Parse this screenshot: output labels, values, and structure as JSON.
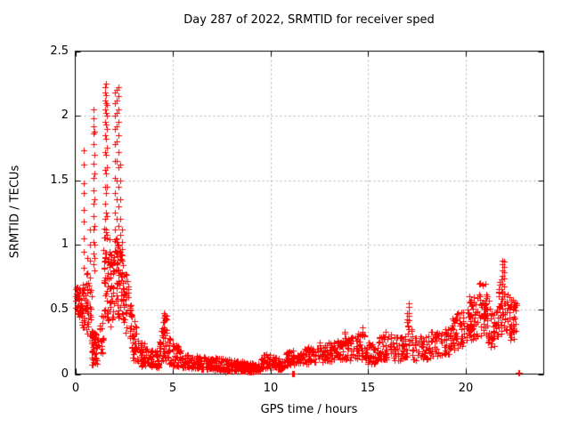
{
  "chart_data": {
    "type": "scatter",
    "title": "Day 287 of 2022, SRMTID for receiver sped",
    "xlabel": "GPS time / hours",
    "ylabel": "SRMTID / TECUs",
    "xlim": [
      0,
      24
    ],
    "ylim": [
      0,
      2.5
    ],
    "xticks": {
      "values": [
        0,
        5,
        10,
        15,
        20
      ],
      "labels": [
        "0",
        "5",
        "10",
        "15",
        "20"
      ]
    },
    "yticks": {
      "values": [
        0,
        0.5,
        1,
        1.5,
        2,
        2.5
      ],
      "labels": [
        "0",
        "0.5",
        "1",
        "1.5",
        "2",
        "2.5"
      ]
    },
    "grid": true,
    "legend": "none",
    "marker": "plus",
    "marker_size_px": 7,
    "colors": {
      "marker": "#ff0000",
      "grid": "#b0b0b0",
      "axis": "#000000",
      "background": "#ffffff",
      "text": "#000000"
    },
    "seed": 287,
    "bands": [
      [
        0.02,
        0.28,
        42,
        0.44,
        0.68,
        0.44,
        0.66,
        1.0
      ],
      [
        0.28,
        0.55,
        30,
        0.38,
        0.72,
        0.34,
        0.68,
        1.2
      ],
      [
        0.55,
        0.85,
        26,
        0.32,
        0.78,
        0.28,
        0.72,
        1.2
      ],
      [
        0.82,
        1.15,
        48,
        0.07,
        0.34,
        0.08,
        0.3,
        1.2
      ],
      [
        1.15,
        1.45,
        22,
        0.1,
        0.42,
        0.15,
        0.5,
        1.2
      ],
      [
        1.45,
        1.8,
        50,
        0.35,
        1.15,
        0.45,
        1.12,
        0.9
      ],
      [
        1.8,
        2.02,
        28,
        0.35,
        0.95,
        0.4,
        0.9,
        1.0
      ],
      [
        2.02,
        2.45,
        60,
        0.45,
        1.08,
        0.4,
        0.95,
        1.0
      ],
      [
        2.45,
        2.85,
        42,
        0.32,
        0.88,
        0.25,
        0.6,
        1.2
      ],
      [
        2.85,
        3.25,
        36,
        0.12,
        0.5,
        0.08,
        0.3,
        1.3
      ],
      [
        3.25,
        3.65,
        34,
        0.06,
        0.28,
        0.05,
        0.22,
        1.3
      ],
      [
        3.65,
        4.3,
        52,
        0.04,
        0.2,
        0.05,
        0.2,
        1.3
      ],
      [
        4.3,
        4.48,
        16,
        0.08,
        0.3,
        0.1,
        0.42,
        1.1
      ],
      [
        4.48,
        4.68,
        24,
        0.1,
        0.5,
        0.1,
        0.45,
        1.0
      ],
      [
        4.68,
        4.85,
        14,
        0.08,
        0.38,
        0.08,
        0.3,
        1.2
      ],
      [
        4.85,
        5.45,
        40,
        0.07,
        0.3,
        0.05,
        0.18,
        1.4
      ],
      [
        5.45,
        6.45,
        75,
        0.04,
        0.16,
        0.04,
        0.14,
        1.3
      ],
      [
        6.45,
        7.55,
        85,
        0.03,
        0.14,
        0.03,
        0.12,
        1.3
      ],
      [
        7.55,
        8.7,
        90,
        0.02,
        0.12,
        0.02,
        0.1,
        1.3
      ],
      [
        8.7,
        9.5,
        60,
        0.015,
        0.09,
        0.02,
        0.08,
        1.2
      ],
      [
        9.5,
        10.3,
        55,
        0.04,
        0.16,
        0.05,
        0.15,
        1.2
      ],
      [
        10.3,
        10.7,
        28,
        0.03,
        0.12,
        0.04,
        0.12,
        1.2
      ],
      [
        10.7,
        11.5,
        50,
        0.06,
        0.18,
        0.07,
        0.18,
        1.2
      ],
      [
        11.5,
        12.3,
        55,
        0.07,
        0.2,
        0.08,
        0.22,
        1.2
      ],
      [
        12.3,
        13.3,
        65,
        0.09,
        0.25,
        0.1,
        0.25,
        1.2
      ],
      [
        13.3,
        14.0,
        48,
        0.1,
        0.28,
        0.12,
        0.3,
        1.2
      ],
      [
        14.0,
        14.9,
        52,
        0.1,
        0.3,
        0.12,
        0.33,
        1.2
      ],
      [
        14.9,
        15.55,
        40,
        0.07,
        0.26,
        0.08,
        0.24,
        1.2
      ],
      [
        15.55,
        16.35,
        50,
        0.1,
        0.32,
        0.12,
        0.34,
        1.2
      ],
      [
        16.35,
        17.0,
        40,
        0.1,
        0.3,
        0.12,
        0.3,
        1.2
      ],
      [
        17.0,
        17.25,
        18,
        0.15,
        0.5,
        0.15,
        0.45,
        1.0
      ],
      [
        17.25,
        18.2,
        55,
        0.1,
        0.3,
        0.12,
        0.3,
        1.2
      ],
      [
        18.2,
        19.3,
        65,
        0.13,
        0.34,
        0.15,
        0.36,
        1.1
      ],
      [
        19.3,
        20.0,
        50,
        0.18,
        0.45,
        0.22,
        0.52,
        1.1
      ],
      [
        20.0,
        20.65,
        55,
        0.25,
        0.6,
        0.28,
        0.62,
        1.0
      ],
      [
        20.65,
        21.15,
        52,
        0.28,
        0.72,
        0.3,
        0.7,
        1.0
      ],
      [
        21.15,
        21.7,
        45,
        0.2,
        0.58,
        0.22,
        0.55,
        1.1
      ],
      [
        21.7,
        22.15,
        40,
        0.28,
        0.75,
        0.3,
        0.7,
        1.0
      ],
      [
        22.15,
        22.6,
        45,
        0.25,
        0.62,
        0.28,
        0.55,
        1.1
      ]
    ],
    "columns": [
      {
        "x": 0.42,
        "ys": [
          0.82,
          0.95,
          1.05,
          1.18,
          1.27,
          1.4,
          1.48,
          1.62,
          1.73
        ]
      },
      {
        "x": 0.6,
        "ys": [
          0.55,
          0.66,
          0.78,
          0.9
        ]
      },
      {
        "x": 0.75,
        "ys": [
          0.52,
          0.64,
          0.75,
          0.88,
          1.0,
          1.12
        ]
      },
      {
        "x": 0.92,
        "ys": [
          0.85,
          0.93,
          1.02,
          1.12,
          1.22,
          1.32,
          1.42,
          1.52,
          1.63,
          1.78,
          1.86,
          1.92,
          1.98,
          2.05
        ]
      },
      {
        "x": 0.97,
        "ys": [
          0.8,
          0.9,
          1.0,
          1.15,
          1.35,
          1.55,
          1.7,
          1.88
        ]
      },
      {
        "x": 1.52,
        "ys": [
          1.2,
          1.32,
          1.45,
          1.58,
          1.72,
          1.85,
          1.95,
          2.05,
          2.12,
          2.18,
          2.22
        ]
      },
      {
        "x": 1.57,
        "ys": [
          1.1,
          1.25,
          1.4,
          1.55,
          1.7,
          1.82,
          1.93,
          2.02,
          2.1,
          2.16,
          2.25
        ]
      },
      {
        "x": 1.63,
        "ys": [
          1.05,
          1.22,
          1.45,
          1.6,
          1.75,
          1.9,
          2.0,
          2.08
        ]
      },
      {
        "x": 2.05,
        "ys": [
          1.12,
          1.25,
          1.4,
          1.52,
          1.65,
          1.78,
          1.9,
          2.0,
          2.1,
          2.18
        ]
      },
      {
        "x": 2.12,
        "ys": [
          1.05,
          1.2,
          1.35,
          1.5,
          1.65,
          1.8,
          1.92,
          2.02,
          2.12,
          2.2
        ]
      },
      {
        "x": 2.22,
        "ys": [
          1.0,
          1.15,
          1.3,
          1.45,
          1.6,
          1.72,
          1.85,
          1.95,
          2.05,
          2.15,
          2.22
        ]
      },
      {
        "x": 2.3,
        "ys": [
          0.95,
          1.08,
          1.2,
          1.35,
          1.5,
          1.62
        ]
      },
      {
        "x": 2.38,
        "ys": [
          0.92,
          1.02,
          1.12
        ]
      },
      {
        "x": 4.55,
        "ys": [
          0.32,
          0.36,
          0.4,
          0.44,
          0.47
        ]
      },
      {
        "x": 4.6,
        "ys": [
          0.3,
          0.35,
          0.42,
          0.46
        ]
      },
      {
        "x": 11.1,
        "ys": [
          0.004
        ]
      },
      {
        "x": 11.14,
        "ys": [
          0.004
        ]
      },
      {
        "x": 11.18,
        "ys": [
          0.004
        ]
      },
      {
        "x": 13.78,
        "ys": [
          0.28,
          0.31,
          0.33
        ]
      },
      {
        "x": 14.7,
        "ys": [
          0.3,
          0.33,
          0.36
        ]
      },
      {
        "x": 17.1,
        "ys": [
          0.42,
          0.47,
          0.52,
          0.55
        ]
      },
      {
        "x": 21.9,
        "ys": [
          0.58,
          0.64,
          0.7,
          0.76,
          0.8,
          0.85,
          0.88
        ]
      },
      {
        "x": 21.97,
        "ys": [
          0.55,
          0.62,
          0.68,
          0.74,
          0.79,
          0.83,
          0.87
        ]
      },
      {
        "x": 22.68,
        "ys": [
          0.012
        ]
      },
      {
        "x": 22.73,
        "ys": [
          0.012
        ]
      }
    ]
  }
}
